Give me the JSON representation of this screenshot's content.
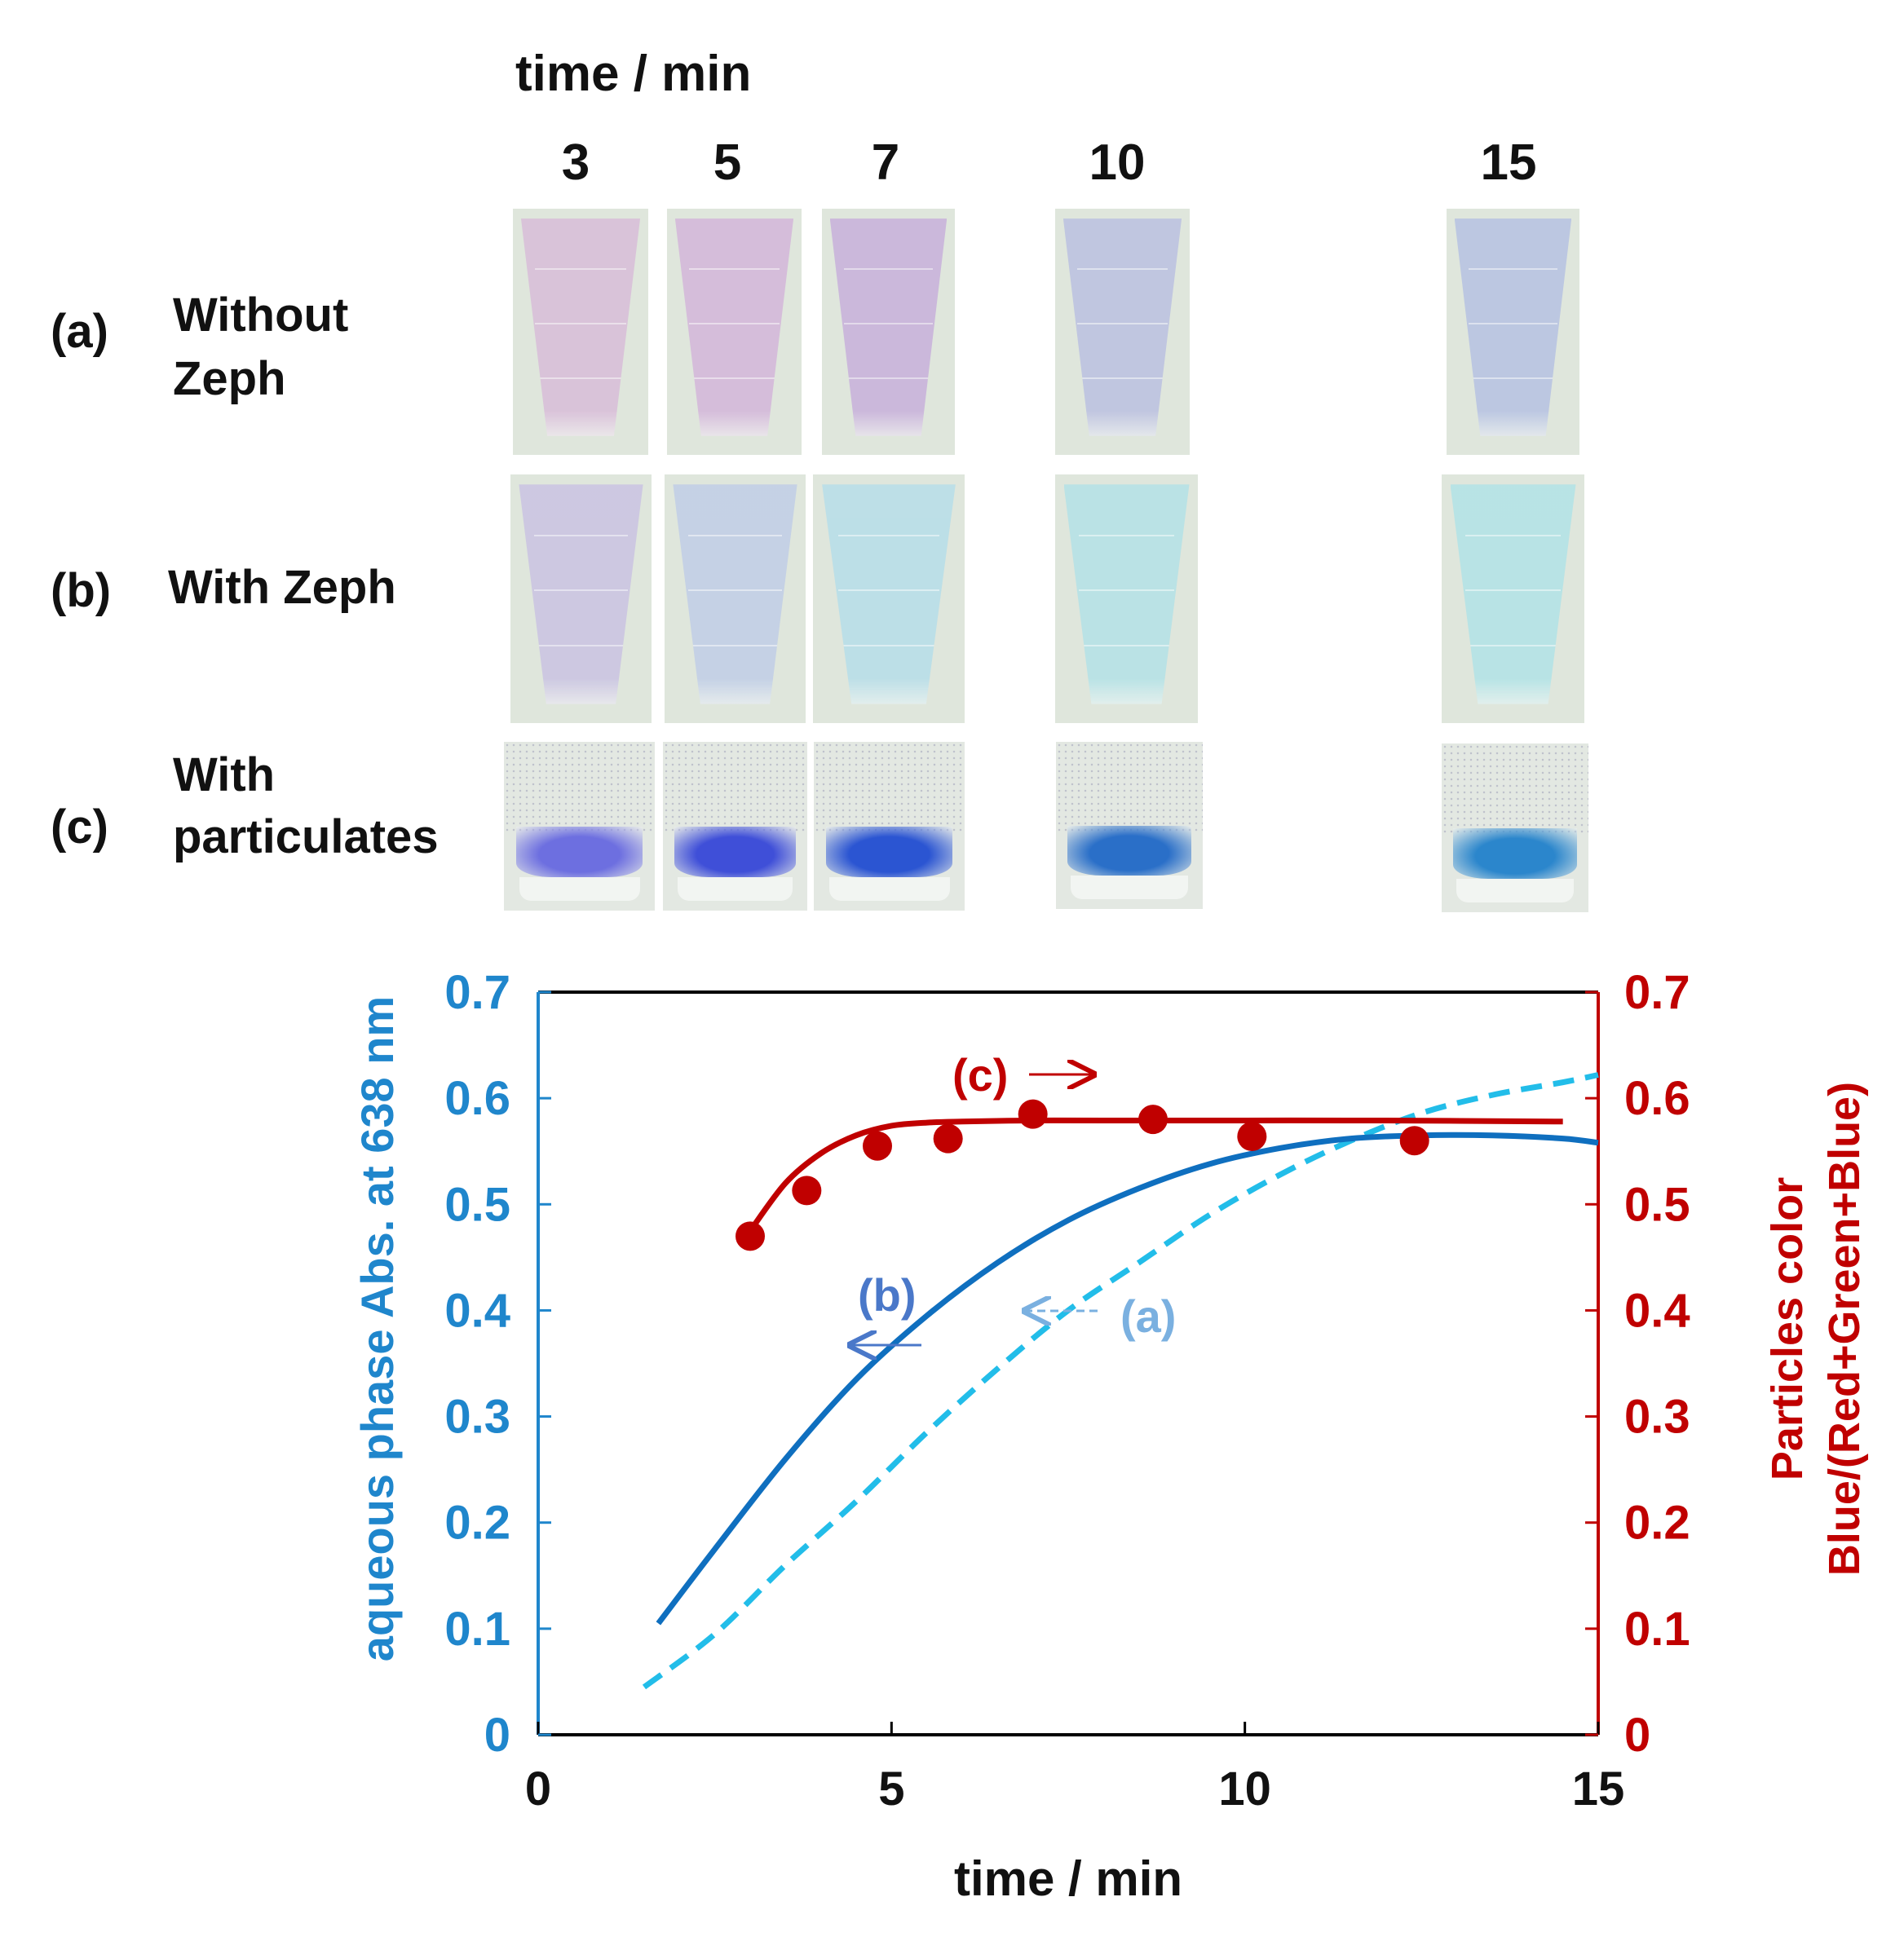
{
  "photos": {
    "time_header": "time  / min",
    "times": [
      "3",
      "5",
      "7",
      "10",
      "15"
    ],
    "rows": [
      {
        "letter": "(a)",
        "label_lines": [
          "Without",
          "Zeph"
        ],
        "colors": [
          "#d9bfd9",
          "#d4b8da",
          "#c9b3db",
          "#bdc2e0",
          "#b8c4e2"
        ]
      },
      {
        "letter": "(b)",
        "label_lines": [
          "With Zeph"
        ],
        "colors": [
          "#cbc5e2",
          "#c2cfe6",
          "#b9dee8",
          "#b6e2e6",
          "#b4e3e6"
        ]
      },
      {
        "letter": "(c)",
        "label_lines": [
          "With",
          "particulates"
        ],
        "colors": [
          "#6d6fe0",
          "#3f4fd8",
          "#2b55d2",
          "#2a6fc8",
          "#2b86cc"
        ]
      }
    ]
  },
  "chart_data": {
    "type": "line",
    "xlabel": "time  / min",
    "ylabel_left": "aqueous phase Abs. at  638 nm",
    "ylabel_right_lines": [
      "Particles color",
      "Blue/(Red+Green+Blue)"
    ],
    "xlim": [
      0,
      15
    ],
    "ylim_left": [
      0,
      0.7
    ],
    "ylim_right": [
      0,
      0.7
    ],
    "x_ticks": [
      "0",
      "5",
      "10",
      "15"
    ],
    "y_ticks_left": [
      "0",
      "0.1",
      "0.2",
      "0.3",
      "0.4",
      "0.5",
      "0.6",
      "0.7"
    ],
    "y_ticks_right": [
      "0",
      "0.1",
      "0.2",
      "0.3",
      "0.4",
      "0.5",
      "0.6",
      "0.7"
    ],
    "colors": {
      "left_axis": "#1f86cc",
      "right_axis": "#c00000",
      "series_b": "#0f6fbf",
      "series_a": "#22bde9",
      "series_c": "#c00000",
      "label_a": "#7ab0e0",
      "label_b": "#4a78c9"
    },
    "series": [
      {
        "name": "(b)",
        "axis": "left",
        "style": "solid",
        "x": [
          1.7,
          2.5,
          3.5,
          4.5,
          5.5,
          6.5,
          7.5,
          8.5,
          9.5,
          10.5,
          11.5,
          12.5,
          13.5,
          14.5,
          15.0
        ],
        "y": [
          0.105,
          0.175,
          0.26,
          0.335,
          0.395,
          0.445,
          0.485,
          0.515,
          0.538,
          0.553,
          0.562,
          0.565,
          0.565,
          0.562,
          0.558
        ]
      },
      {
        "name": "(a)",
        "axis": "left",
        "style": "dashed",
        "x": [
          1.5,
          2.5,
          3.5,
          4.5,
          5.5,
          6.5,
          7.5,
          8.5,
          9.5,
          10.5,
          11.5,
          12.5,
          13.5,
          14.5,
          15.0
        ],
        "y": [
          0.045,
          0.095,
          0.16,
          0.22,
          0.285,
          0.345,
          0.4,
          0.445,
          0.49,
          0.528,
          0.56,
          0.586,
          0.603,
          0.615,
          0.622
        ]
      },
      {
        "name": "(c)",
        "axis": "right",
        "style": "solid+markers",
        "points_x": [
          3.0,
          3.8,
          4.8,
          5.8,
          7.0,
          8.7,
          10.1,
          12.4
        ],
        "points_y": [
          0.47,
          0.513,
          0.555,
          0.562,
          0.585,
          0.58,
          0.564,
          0.56
        ],
        "fit_x": [
          3.0,
          3.5,
          4.0,
          4.5,
          5.0,
          5.5,
          6.0,
          7.0,
          8.0,
          10.0,
          12.0,
          14.5
        ],
        "fit_y": [
          0.475,
          0.52,
          0.548,
          0.565,
          0.574,
          0.577,
          0.578,
          0.579,
          0.579,
          0.579,
          0.579,
          0.578
        ]
      }
    ],
    "annotations": {
      "c": "(c)",
      "b": "(b)",
      "a": "(a)"
    }
  }
}
